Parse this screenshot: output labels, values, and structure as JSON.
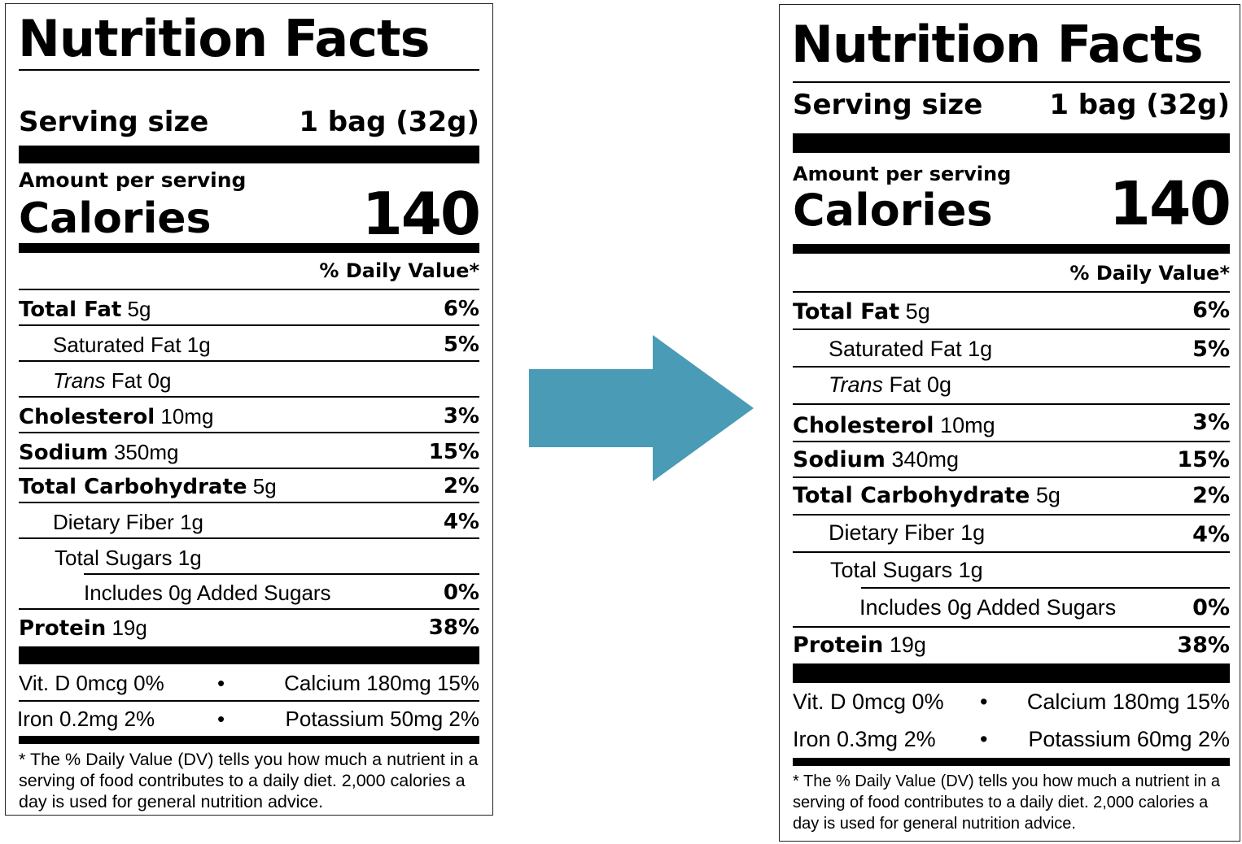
{
  "labels": [
    {
      "title": "Nutrition Facts",
      "serving_label": "Serving size",
      "serving_value": "1 bag (32g)",
      "amount_per_serving": "Amount per serving",
      "calories_label": "Calories",
      "calories_value": "140",
      "daily_value_header": "% Daily Value*",
      "rows": [
        {
          "name": "Total Fat",
          "amount": "5g",
          "dv": "6%"
        },
        {
          "name": "Saturated Fat",
          "amount": "1g",
          "dv": "5%"
        },
        {
          "name": "Trans",
          "amount": "Fat 0g",
          "dv": ""
        },
        {
          "name": "Cholesterol",
          "amount": "10mg",
          "dv": "3%"
        },
        {
          "name": "Sodium",
          "amount": "350mg",
          "dv": "15%"
        },
        {
          "name": "Total Carbohydrate",
          "amount": "5g",
          "dv": "2%"
        },
        {
          "name": "Dietary Fiber",
          "amount": "1g",
          "dv": "4%"
        },
        {
          "name": "Total Sugars",
          "amount": "1g",
          "dv": ""
        },
        {
          "name": "Includes 0g Added Sugars",
          "amount": "",
          "dv": "0%"
        },
        {
          "name": "Protein",
          "amount": "19g",
          "dv": "38%"
        }
      ],
      "vitamins": [
        {
          "left": "Vit. D 0mcg 0%",
          "right": "Calcium 180mg 15%"
        },
        {
          "left": "Iron 0.2mg 2%",
          "right": "Potassium 50mg 2%"
        }
      ],
      "bullet": "•",
      "footnote": "* The % Daily Value (DV) tells you how much a nutrient in a serving of food contributes to a daily diet. 2,000 calories a day is used for general nutrition advice."
    },
    {
      "title": "Nutrition Facts",
      "serving_label": "Serving size",
      "serving_value": "1 bag (32g)",
      "amount_per_serving": "Amount per serving",
      "calories_label": "Calories",
      "calories_value": "140",
      "daily_value_header": "% Daily Value*",
      "rows": [
        {
          "name": "Total Fat",
          "amount": "5g",
          "dv": "6%"
        },
        {
          "name": "Saturated Fat",
          "amount": "1g",
          "dv": "5%"
        },
        {
          "name": "Trans",
          "amount": "Fat 0g",
          "dv": ""
        },
        {
          "name": "Cholesterol",
          "amount": "10mg",
          "dv": "3%"
        },
        {
          "name": "Sodium",
          "amount": "340mg",
          "dv": "15%"
        },
        {
          "name": "Total Carbohydrate",
          "amount": "5g",
          "dv": "2%"
        },
        {
          "name": "Dietary Fiber",
          "amount": "1g",
          "dv": "4%"
        },
        {
          "name": "Total Sugars",
          "amount": "1g",
          "dv": ""
        },
        {
          "name": "Includes 0g Added Sugars",
          "amount": "",
          "dv": "0%"
        },
        {
          "name": "Protein",
          "amount": "19g",
          "dv": "38%"
        }
      ],
      "vitamins": [
        {
          "left": "Vit. D 0mcg 0%",
          "right": "Calcium 180mg 15%"
        },
        {
          "left": "Iron 0.3mg 2%",
          "right": "Potassium 60mg 2%"
        }
      ],
      "bullet": "•",
      "footnote": "* The % Daily Value (DV) tells you how much a nutrient in a serving of food contributes to a daily diet. 2,000 calories a day is used for general nutrition advice."
    }
  ],
  "arrow": {
    "color": "#4a9bb5",
    "icon": "right-arrow-icon"
  }
}
